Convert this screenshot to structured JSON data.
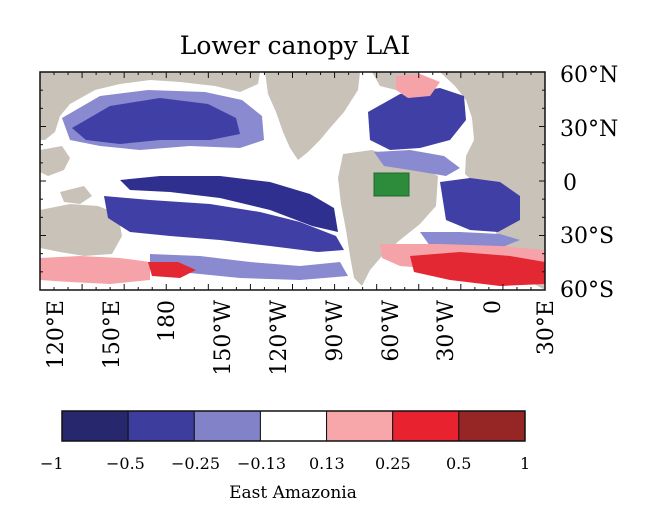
{
  "title": "Lower canopy LAI",
  "lat_labels": [
    "60°N",
    "30°N",
    "0",
    "30°S",
    "60°S"
  ],
  "lon_labels": [
    "120°E",
    "150°E",
    "180",
    "150°W",
    "120°W",
    "90°W",
    "60°W",
    "30°W",
    "0",
    "30°E"
  ],
  "colorbar": {
    "title": "East Amazonia",
    "tick_labels": [
      "−1",
      "−0.5",
      "−0.25",
      "−0.13",
      "0.13",
      "0.25",
      "0.5",
      "1"
    ],
    "colors": [
      "#27276e",
      "#3d3d9e",
      "#8282c8",
      "#ffffff",
      "#f7a6a9",
      "#e8232f",
      "#962626"
    ]
  },
  "map_colors": {
    "land": "#c9c2b9",
    "region_box": "#2d8b3c",
    "neg_dark": "#2f2f8f",
    "neg_mid": "#3f3fa6",
    "neg_light": "#8a8ad0",
    "pos_light": "#f5a3a8",
    "pos_mid": "#e42833"
  }
}
